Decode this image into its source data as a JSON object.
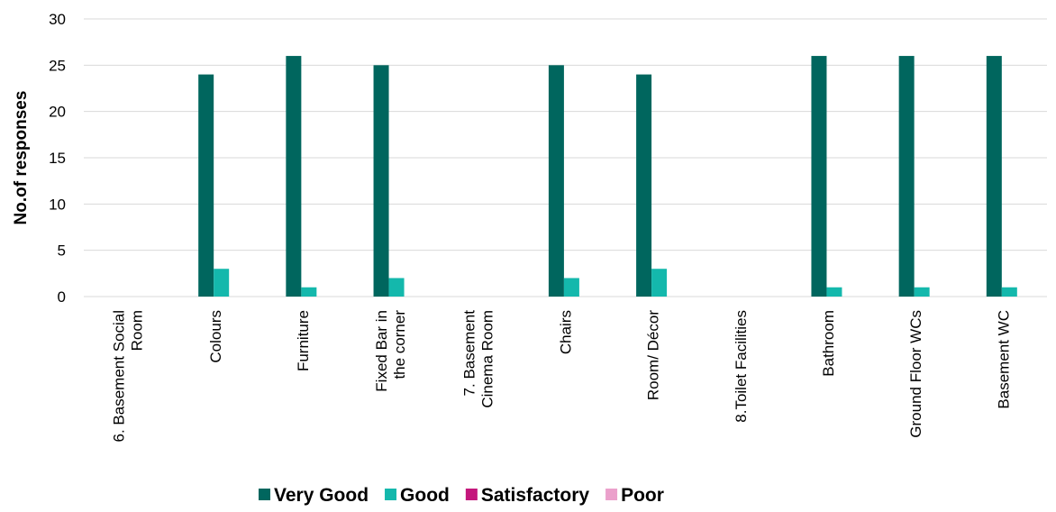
{
  "chart_data": {
    "type": "bar",
    "title": "",
    "xlabel": "",
    "ylabel": "No.of responses",
    "ylim": [
      0,
      30
    ],
    "yticks": [
      "0",
      "5",
      "10",
      "15",
      "20",
      "25",
      "30"
    ],
    "grid": true,
    "legend_position": "bottom",
    "categories": [
      [
        "6. Basement Social",
        "Room"
      ],
      [
        "Colours"
      ],
      [
        "Furniture"
      ],
      [
        "Fixed Bar in",
        "the corner"
      ],
      [
        "7. Basement",
        "Cinema Room"
      ],
      [
        "Chairs"
      ],
      [
        "Room/ Décor"
      ],
      [
        "8.Toilet Facilities"
      ],
      [
        "Bathroom"
      ],
      [
        "Ground Floor WCs"
      ],
      [
        "Basement WC"
      ]
    ],
    "series": [
      {
        "name": "Very Good",
        "color": "#00665e",
        "values": [
          0,
          24,
          26,
          25,
          0,
          25,
          24,
          0,
          26,
          26,
          26
        ]
      },
      {
        "name": "Good",
        "color": "#14b8ac",
        "values": [
          0,
          3,
          1,
          2,
          0,
          2,
          3,
          0,
          1,
          1,
          1
        ]
      },
      {
        "name": "Satisfactory",
        "color": "#c4177c",
        "values": [
          0,
          0,
          0,
          0,
          0,
          0,
          0,
          0,
          0,
          0,
          0
        ]
      },
      {
        "name": "Poor",
        "color": "#eba0cb",
        "values": [
          0,
          0,
          0,
          0,
          0,
          0,
          0,
          0,
          0,
          0,
          0
        ]
      }
    ]
  }
}
